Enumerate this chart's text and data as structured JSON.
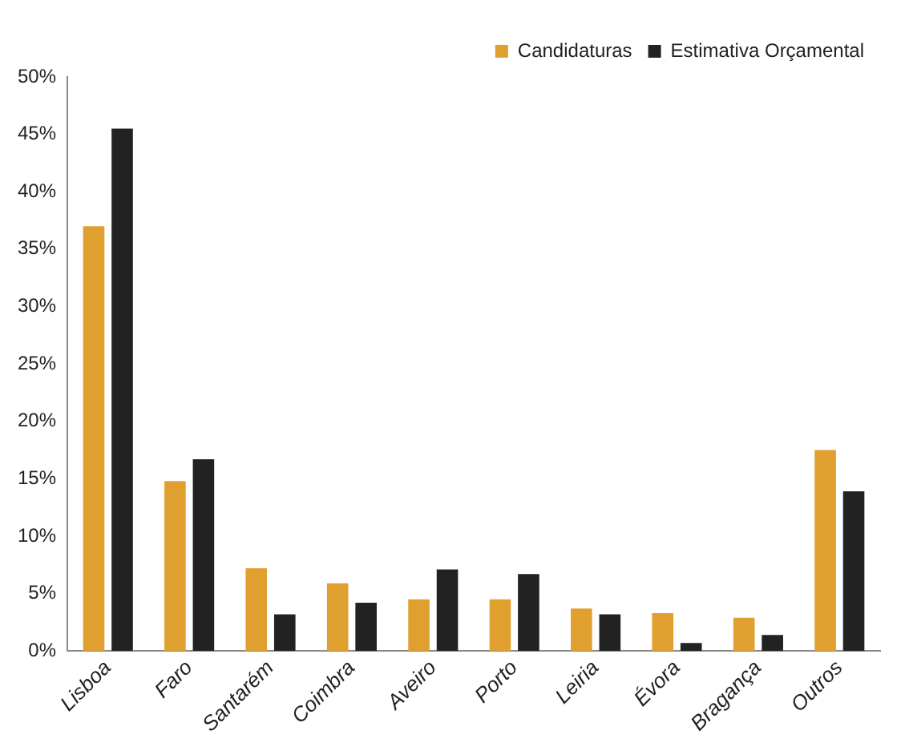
{
  "chart_data": {
    "type": "bar",
    "categories": [
      "Lisboa",
      "Faro",
      "Santarém",
      "Coimbra",
      "Aveiro",
      "Porto",
      "Leiria",
      "Évora",
      "Bragança",
      "Outros"
    ],
    "series": [
      {
        "name": "Candidaturas",
        "color": "#e0a030",
        "values": [
          37,
          14.8,
          7.2,
          5.9,
          4.5,
          4.5,
          3.7,
          3.3,
          2.9,
          17.5
        ]
      },
      {
        "name": "Estimativa Orçamental",
        "color": "#222222",
        "values": [
          45.5,
          16.7,
          3.2,
          4.2,
          7.1,
          6.7,
          3.2,
          0.7,
          1.4,
          13.9
        ]
      }
    ],
    "ylim": [
      0,
      50
    ],
    "yticks": [
      {
        "value": 0,
        "label": "0%"
      },
      {
        "value": 5,
        "label": "5%"
      },
      {
        "value": 10,
        "label": "10%"
      },
      {
        "value": 15,
        "label": "15%"
      },
      {
        "value": 20,
        "label": "20%"
      },
      {
        "value": 25,
        "label": "25%"
      },
      {
        "value": 30,
        "label": "30%"
      },
      {
        "value": 35,
        "label": "35%"
      },
      {
        "value": 40,
        "label": "40%"
      },
      {
        "value": 45,
        "label": "45%"
      },
      {
        "value": 50,
        "label": "50%"
      }
    ],
    "grid": false,
    "legend": "top right"
  }
}
